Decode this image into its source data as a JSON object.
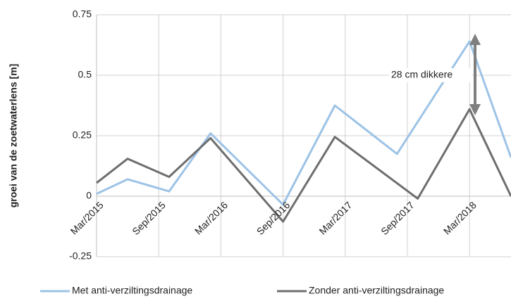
{
  "chart_data": {
    "type": "line",
    "y_label": "groei van de zoetwaterlens [m]",
    "annotation": "28 cm dikkere",
    "xlim": [
      "Mar/2015",
      "Jul/2018"
    ],
    "xticks": [
      "Mar/2015",
      "Sep/2015",
      "Mar/2016",
      "Sep/2016",
      "Mar/2017",
      "Sep/2017",
      "Mar/2018"
    ],
    "ylim": [
      -0.25,
      0.75
    ],
    "yticks": [
      -0.25,
      0,
      0.25,
      0.5,
      0.75
    ],
    "grid": true,
    "legend": "bottom",
    "series": [
      {
        "name": "Met anti-verziltingsdrainage",
        "color": "#9dc3e6",
        "x": [
          "Mar/2015",
          "Jun/2015",
          "Oct/2015",
          "Feb/2016",
          "Sep/2016",
          "Feb/2017",
          "Aug/2017",
          "Mar/2018",
          "Jul/2018"
        ],
        "values": [
          0.01,
          0.07,
          0.02,
          0.26,
          -0.035,
          0.375,
          0.175,
          0.64,
          0.16
        ]
      },
      {
        "name": "Zonder anti-verziltingsdrainage",
        "color": "#6e6e6e",
        "x": [
          "Mar/2015",
          "Jun/2015",
          "Oct/2015",
          "Feb/2016",
          "Sep/2016",
          "Feb/2017",
          "Oct/2017",
          "Mar/2018",
          "Jul/2018"
        ],
        "values": [
          0.055,
          0.155,
          0.08,
          0.24,
          -0.105,
          0.245,
          -0.01,
          0.36,
          0.0
        ]
      }
    ]
  }
}
